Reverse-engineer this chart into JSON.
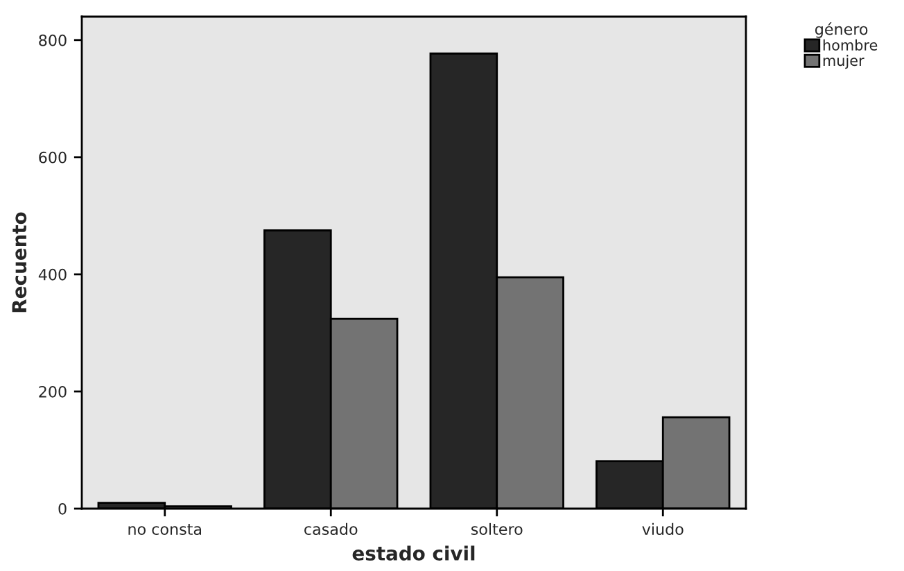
{
  "chart_data": {
    "type": "bar",
    "xlabel": "estado civil",
    "ylabel": "Recuento",
    "legend_title": "género",
    "categories": [
      "no consta",
      "casado",
      "soltero",
      "viudo"
    ],
    "series": [
      {
        "name": "hombre",
        "color": "#262626",
        "values": [
          10,
          475,
          777,
          81
        ]
      },
      {
        "name": "mujer",
        "color": "#737373",
        "values": [
          4,
          324,
          395,
          156
        ]
      }
    ],
    "ylim": [
      0,
      840
    ],
    "yticks": [
      0,
      200,
      400,
      600,
      800
    ],
    "grid": false,
    "legend": "top right"
  }
}
